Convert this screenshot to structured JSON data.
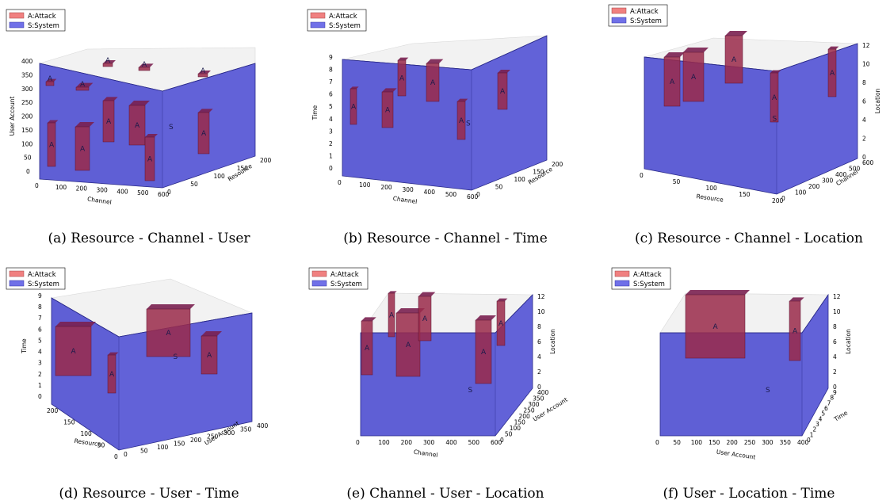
{
  "legend": {
    "attack": "A:Attack",
    "system": "S:System"
  },
  "colors": {
    "system": "#3f3fd0",
    "attack": "#9a2a4a",
    "legend_attack": "#f08080",
    "legend_system": "#7070e8",
    "pane": "#f2f2f2",
    "edge": "#2a2a8a"
  },
  "chart_data": [
    {
      "type": "3d-box",
      "caption": "(a) Resource - Channel - User",
      "axes": {
        "x": {
          "label": "Channel",
          "ticks": [
            "0",
            "100",
            "200",
            "300",
            "400",
            "500",
            "600"
          ],
          "range": [
            0,
            600
          ]
        },
        "y": {
          "label": "Resource",
          "ticks": [
            "0",
            "50",
            "100",
            "150",
            "200"
          ],
          "range": [
            0,
            200
          ]
        },
        "z": {
          "label": "User Account",
          "ticks": [
            "0",
            "50",
            "100",
            "150",
            "200",
            "250",
            "300",
            "350",
            "400"
          ],
          "range": [
            0,
            400
          ]
        }
      },
      "system_label": "S",
      "attack_label": "A",
      "attacks_count": 11
    },
    {
      "type": "3d-box",
      "caption": "(b) Resource - Channel - Time",
      "axes": {
        "x": {
          "label": "Channel",
          "ticks": [
            "0",
            "100",
            "200",
            "300",
            "400",
            "500",
            "600"
          ],
          "range": [
            0,
            600
          ]
        },
        "y": {
          "label": "Resource",
          "ticks": [
            "0",
            "50",
            "100",
            "150",
            "200"
          ],
          "range": [
            0,
            200
          ]
        },
        "z": {
          "label": "Time",
          "ticks": [
            "0",
            "1",
            "2",
            "3",
            "4",
            "5",
            "6",
            "7",
            "8",
            "9"
          ],
          "range": [
            0,
            9
          ]
        }
      },
      "system_label": "S",
      "attack_label": "A",
      "attacks_count": 6
    },
    {
      "type": "3d-box",
      "caption": "(c) Resource - Channel - Location",
      "axes": {
        "x": {
          "label": "Resource",
          "ticks": [
            "0",
            "50",
            "100",
            "150",
            "200"
          ],
          "range": [
            0,
            200
          ]
        },
        "y": {
          "label": "Channel",
          "ticks": [
            "0",
            "100",
            "200",
            "300",
            "400",
            "500",
            "600"
          ],
          "range": [
            0,
            600
          ]
        },
        "z": {
          "label": "Location",
          "ticks": [
            "0",
            "2",
            "4",
            "6",
            "8",
            "10",
            "12"
          ],
          "range": [
            0,
            12
          ]
        }
      },
      "system_label": "S",
      "attack_label": "A",
      "attacks_count": 5
    },
    {
      "type": "3d-box",
      "caption": "(d) Resource - User - Time",
      "axes": {
        "x": {
          "label": "Resource",
          "ticks": [
            "200",
            "150",
            "100",
            "50",
            "0"
          ],
          "range": [
            0,
            200
          ]
        },
        "y": {
          "label": "User Account",
          "ticks": [
            "0",
            "50",
            "100",
            "150",
            "200",
            "250",
            "300",
            "350",
            "400"
          ],
          "range": [
            0,
            400
          ]
        },
        "z": {
          "label": "Time",
          "ticks": [
            "0",
            "1",
            "2",
            "3",
            "4",
            "5",
            "6",
            "7",
            "8",
            "9"
          ],
          "range": [
            0,
            9
          ]
        }
      },
      "system_label": "S",
      "attack_label": "A",
      "attacks_count": 4
    },
    {
      "type": "3d-box",
      "caption": "(e) Channel - User - Location",
      "axes": {
        "x": {
          "label": "Channel",
          "ticks": [
            "0",
            "100",
            "200",
            "300",
            "400",
            "500",
            "600"
          ],
          "range": [
            0,
            600
          ]
        },
        "y": {
          "label": "User Account",
          "ticks": [
            "0",
            "50",
            "100",
            "150",
            "200",
            "250",
            "300",
            "350",
            "400"
          ],
          "range": [
            0,
            400
          ]
        },
        "z": {
          "label": "Location",
          "ticks": [
            "0",
            "2",
            "4",
            "6",
            "8",
            "10",
            "12"
          ],
          "range": [
            0,
            12
          ]
        }
      },
      "system_label": "S",
      "attack_label": "A",
      "attacks_count": 6
    },
    {
      "type": "3d-box",
      "caption": "(f) User - Location - Time",
      "axes": {
        "x": {
          "label": "User Account",
          "ticks": [
            "0",
            "50",
            "100",
            "150",
            "200",
            "250",
            "300",
            "350",
            "400"
          ],
          "range": [
            0,
            400
          ]
        },
        "y": {
          "label": "Time",
          "ticks": [
            "0",
            "1",
            "2",
            "3",
            "4",
            "5",
            "6",
            "7",
            "8",
            "9"
          ],
          "range": [
            0,
            9
          ]
        },
        "z": {
          "label": "Location",
          "ticks": [
            "0",
            "2",
            "4",
            "6",
            "8",
            "10",
            "12"
          ],
          "range": [
            0,
            12
          ]
        }
      },
      "system_label": "S",
      "attack_label": "A",
      "attacks_count": 2
    }
  ]
}
